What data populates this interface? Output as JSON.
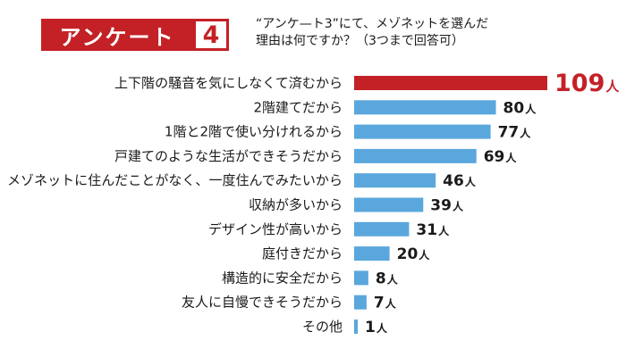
{
  "header": {
    "survey_label": "アンケート",
    "survey_number": "4",
    "question_line1": "“アンケ—ト3”にて、メゾネットを選んだ",
    "question_line2": "理由は何ですか？（3つまで回答可）"
  },
  "colors": {
    "accent": "#c32126",
    "bar": "#5aa7dd",
    "highlight_bar": "#c32126",
    "text": "#1a1a1a"
  },
  "chart_data": {
    "type": "bar",
    "orientation": "horizontal",
    "unit": "人",
    "categories": [
      "上下階の騒音を気にしなくて済むから",
      "2階建てだから",
      "1階と2階で使い分けれるから",
      "戸建てのような生活ができそうだから",
      "メゾネットに住んだことがなく、一度住んでみたいから",
      "収納が多いから",
      "デザイン性が高いから",
      "庭付きだから",
      "構造的に安全だから",
      "友人に自慢できそうだから",
      "その他"
    ],
    "values": [
      109,
      80,
      77,
      69,
      46,
      39,
      31,
      20,
      8,
      7,
      1
    ],
    "highlight_index": 0
  }
}
